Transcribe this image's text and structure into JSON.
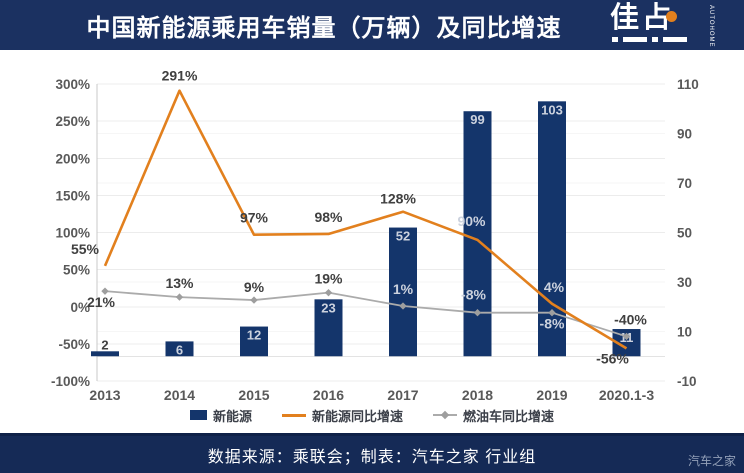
{
  "header": {
    "title": "中国新能源乘用车销量（万辆）及同比增速",
    "logo_text": "佳占",
    "logo_sub": "AUTOHOME"
  },
  "footer": {
    "source_text": "数据来源：乘联会；制表：汽车之家 行业组",
    "watermark": "汽车之家"
  },
  "colors": {
    "header_navy": "#1b3161",
    "footer_navy": "#152a56",
    "bar_navy": "#14356b",
    "orange": "#e2801e",
    "gray_line": "#ababab",
    "axis_text": "#595959",
    "label_dark": "#404040",
    "label_light": "#ccd2de",
    "gridline": "#ececec"
  },
  "chart_data": {
    "type": "combo",
    "title": "中国新能源乘用车销量（万辆）及同比增速",
    "categories": [
      "2013",
      "2014",
      "2015",
      "2016",
      "2017",
      "2018",
      "2019",
      "2020.1-3"
    ],
    "series": [
      {
        "name": "新能源",
        "kind": "bar",
        "axis": "right",
        "unit": "万辆",
        "color": "#14356b",
        "values": [
          2,
          6,
          12,
          23,
          52,
          99,
          103,
          11
        ]
      },
      {
        "name": "新能源同比增速",
        "kind": "line",
        "axis": "left",
        "unit": "%",
        "color": "#e2801e",
        "values": [
          55,
          291,
          97,
          98,
          128,
          90,
          4,
          -56
        ],
        "point_labels": [
          {
            "text": "55%",
            "dx": -20,
            "dy": -12,
            "tone": "dark"
          },
          {
            "text": "291%",
            "dx": 0,
            "dy": -10,
            "tone": "dark"
          },
          {
            "text": "97%",
            "dx": 0,
            "dy": -12,
            "tone": "dark"
          },
          {
            "text": "98%",
            "dx": 0,
            "dy": -12,
            "tone": "dark"
          },
          {
            "text": "128%",
            "dx": -5,
            "dy": -8,
            "tone": "dark"
          },
          {
            "text": "90%",
            "dx": -6,
            "dy": -14,
            "tone": "light"
          },
          {
            "text": "4%",
            "dx": 2,
            "dy": -12,
            "tone": "light"
          },
          {
            "text": "-56%",
            "dx": -14,
            "dy": 15,
            "tone": "dark"
          }
        ]
      },
      {
        "name": "燃油车同比增速",
        "kind": "line",
        "axis": "left",
        "unit": "%",
        "color": "#ababab",
        "marker": "diamond",
        "values": [
          21,
          13,
          9,
          19,
          1,
          -8,
          -8,
          -40
        ],
        "point_labels": [
          {
            "text": "21%",
            "dx": -4,
            "dy": 16,
            "tone": "dark"
          },
          {
            "text": "13%",
            "dx": 0,
            "dy": -9,
            "tone": "dark"
          },
          {
            "text": "9%",
            "dx": 0,
            "dy": -8,
            "tone": "dark"
          },
          {
            "text": "19%",
            "dx": 0,
            "dy": -9,
            "tone": "dark"
          },
          {
            "text": "1%",
            "dx": 0,
            "dy": -12,
            "tone": "light"
          },
          {
            "text": "-8%",
            "dx": -4,
            "dy": -13,
            "tone": "light"
          },
          {
            "text": "-8%",
            "dx": 0,
            "dy": 16,
            "tone": "light"
          },
          {
            "text": "-40%",
            "dx": 4,
            "dy": -12,
            "tone": "dark"
          }
        ]
      }
    ],
    "axes": {
      "left": {
        "min": -100,
        "max": 300,
        "step": 50,
        "unit": "%",
        "ticks": [
          300,
          250,
          200,
          150,
          100,
          50,
          0,
          -50,
          -100
        ]
      },
      "right": {
        "min": -10,
        "max": 110,
        "step": 20,
        "unit": "",
        "ticks": [
          110,
          90,
          70,
          50,
          30,
          10,
          -10
        ]
      }
    },
    "legend": {
      "position": "bottom",
      "items": [
        "新能源",
        "新能源同比增速",
        "燃油车同比增速"
      ]
    },
    "grid": true
  }
}
